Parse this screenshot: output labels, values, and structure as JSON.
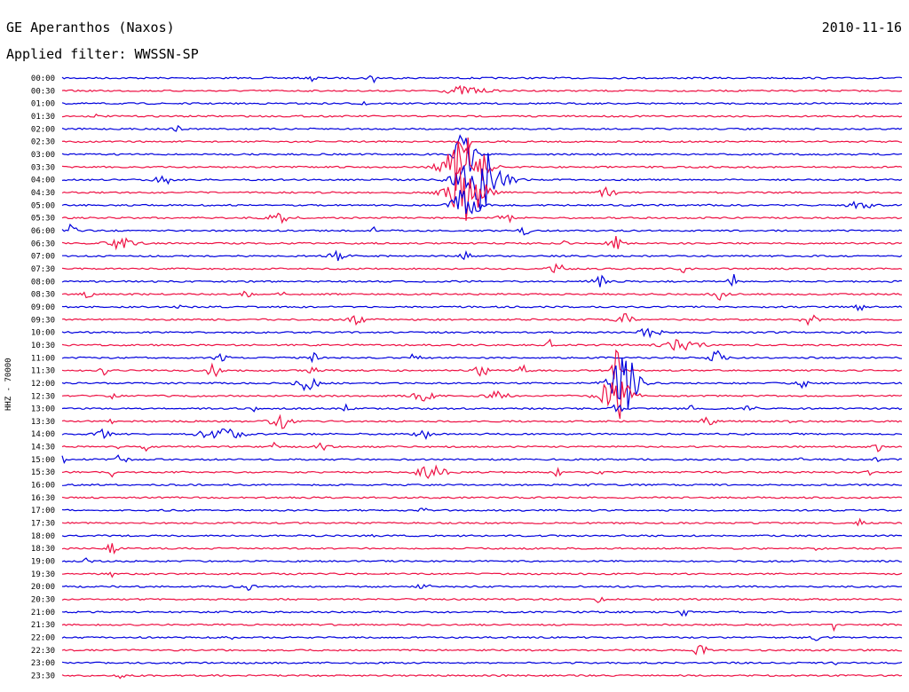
{
  "header": {
    "station": "GE Aperanthos (Naxos)",
    "date": "2010-11-16",
    "filter": "Applied filter: WWSSN-SP"
  },
  "channel_label": "HHZ - 70000",
  "colors": {
    "line_even": "#0000dd",
    "line_odd": "#ee1144"
  },
  "rows": [
    {
      "time": "00:00",
      "events": [
        [
          30,
          0.3,
          0.8
        ],
        [
          37,
          0.4,
          1.1
        ]
      ]
    },
    {
      "time": "00:30",
      "events": [
        [
          48,
          1.5,
          1.0
        ]
      ]
    },
    {
      "time": "01:00",
      "events": [
        [
          36,
          0.2,
          1.0
        ]
      ]
    },
    {
      "time": "01:30",
      "events": [
        [
          4,
          0.1,
          0.6
        ]
      ]
    },
    {
      "time": "02:00",
      "events": [
        [
          14,
          0.5,
          0.7
        ]
      ]
    },
    {
      "time": "02:30",
      "events": [
        [
          48,
          0.4,
          4.0
        ]
      ]
    },
    {
      "time": "03:00",
      "events": [
        [
          48,
          0.8,
          6.0
        ]
      ]
    },
    {
      "time": "03:30",
      "events": [
        [
          48,
          1.6,
          7.0
        ]
      ]
    },
    {
      "time": "04:00",
      "events": [
        [
          12,
          0.6,
          1.2
        ],
        [
          50,
          1.8,
          7.0
        ]
      ]
    },
    {
      "time": "04:30",
      "events": [
        [
          48,
          1.5,
          6.5
        ],
        [
          65,
          0.6,
          1.3
        ]
      ]
    },
    {
      "time": "05:00",
      "events": [
        [
          48,
          1.0,
          5.0
        ],
        [
          95,
          0.8,
          1.2
        ]
      ]
    },
    {
      "time": "05:30",
      "events": [
        [
          26,
          1.0,
          1.2
        ],
        [
          53,
          0.6,
          1.4
        ]
      ]
    },
    {
      "time": "06:00",
      "events": [
        [
          1,
          0.5,
          1.3
        ],
        [
          37,
          0.2,
          1.0
        ],
        [
          55,
          0.4,
          1.1
        ]
      ]
    },
    {
      "time": "06:30",
      "events": [
        [
          7,
          1.2,
          1.2
        ],
        [
          66,
          0.6,
          1.6
        ],
        [
          60,
          0.2,
          1.1
        ]
      ]
    },
    {
      "time": "07:00",
      "events": [
        [
          33,
          0.8,
          1.0
        ],
        [
          48,
          0.4,
          1.0
        ]
      ]
    },
    {
      "time": "07:30",
      "events": [
        [
          59,
          0.6,
          1.0
        ],
        [
          74,
          0.4,
          0.9
        ]
      ]
    },
    {
      "time": "08:00",
      "events": [
        [
          64,
          0.6,
          1.3
        ],
        [
          80,
          0.4,
          1.6
        ]
      ]
    },
    {
      "time": "08:30",
      "events": [
        [
          3,
          0.4,
          0.9
        ],
        [
          22,
          0.3,
          1.3
        ],
        [
          26,
          0.3,
          1.1
        ],
        [
          78,
          0.6,
          1.5
        ]
      ]
    },
    {
      "time": "09:00",
      "events": [
        [
          14,
          0.2,
          0.8
        ],
        [
          95,
          0.3,
          0.9
        ]
      ]
    },
    {
      "time": "09:30",
      "events": [
        [
          35,
          0.8,
          1.0
        ],
        [
          67,
          0.6,
          1.3
        ],
        [
          89,
          0.6,
          1.3
        ]
      ]
    },
    {
      "time": "10:00",
      "events": [
        [
          70,
          0.8,
          1.1
        ]
      ]
    },
    {
      "time": "10:30",
      "events": [
        [
          58,
          0.2,
          1.2
        ],
        [
          74,
          1.4,
          1.5
        ]
      ]
    },
    {
      "time": "11:00",
      "events": [
        [
          19,
          0.5,
          1.0
        ],
        [
          30,
          0.3,
          1.0
        ],
        [
          42,
          0.4,
          1.0
        ],
        [
          78,
          0.6,
          1.4
        ]
      ]
    },
    {
      "time": "11:30",
      "events": [
        [
          5,
          0.3,
          1.1
        ],
        [
          18,
          0.5,
          1.5
        ],
        [
          30,
          0.5,
          0.8
        ],
        [
          50,
          0.6,
          1.2
        ],
        [
          55,
          0.5,
          1.0
        ],
        [
          66,
          0.4,
          5.0
        ]
      ]
    },
    {
      "time": "12:00",
      "events": [
        [
          29,
          1.0,
          1.6
        ],
        [
          67,
          1.2,
          6.5
        ],
        [
          88,
          0.6,
          1.0
        ]
      ]
    },
    {
      "time": "12:30",
      "events": [
        [
          6,
          0.3,
          1.0
        ],
        [
          43,
          0.8,
          1.2
        ],
        [
          52,
          0.8,
          1.2
        ],
        [
          66,
          1.2,
          5.5
        ]
      ]
    },
    {
      "time": "13:00",
      "events": [
        [
          23,
          0.3,
          1.0
        ],
        [
          34,
          0.3,
          1.0
        ],
        [
          66,
          0.4,
          2.0
        ],
        [
          75,
          0.2,
          0.9
        ],
        [
          82,
          0.4,
          1.0
        ]
      ]
    },
    {
      "time": "13:30",
      "events": [
        [
          6,
          0.2,
          1.6
        ],
        [
          26,
          0.8,
          1.5
        ],
        [
          77,
          0.6,
          1.0
        ],
        [
          87,
          0.2,
          0.9
        ]
      ]
    },
    {
      "time": "14:00",
      "events": [
        [
          5,
          0.6,
          1.0
        ],
        [
          19,
          1.8,
          1.2
        ],
        [
          43,
          0.6,
          1.0
        ]
      ]
    },
    {
      "time": "14:30",
      "events": [
        [
          7,
          0.2,
          1.4
        ],
        [
          10,
          0.3,
          0.9
        ],
        [
          25,
          0.3,
          1.1
        ],
        [
          31,
          0.5,
          0.9
        ],
        [
          97,
          0.3,
          1.4
        ]
      ]
    },
    {
      "time": "15:00",
      "events": [
        [
          0,
          0.2,
          1.2
        ],
        [
          7,
          0.5,
          1.2
        ],
        [
          88,
          0.1,
          1.6
        ],
        [
          97,
          0.2,
          1.0
        ]
      ]
    },
    {
      "time": "15:30",
      "events": [
        [
          6,
          0.2,
          0.9
        ],
        [
          44,
          1.2,
          1.4
        ],
        [
          59,
          0.3,
          0.9
        ],
        [
          64,
          0.2,
          0.9
        ],
        [
          96,
          0.2,
          1.0
        ]
      ]
    },
    {
      "time": "16:00",
      "events": [
        [
          63,
          0.2,
          0.8
        ]
      ]
    },
    {
      "time": "16:30",
      "events": []
    },
    {
      "time": "17:00",
      "events": [
        [
          43,
          0.3,
          0.6
        ]
      ]
    },
    {
      "time": "17:30",
      "events": [
        [
          95,
          0.3,
          0.8
        ]
      ]
    },
    {
      "time": "18:00",
      "events": [
        [
          37,
          0.1,
          0.6
        ]
      ]
    },
    {
      "time": "18:30",
      "events": [
        [
          6,
          0.6,
          1.0
        ],
        [
          90,
          0.3,
          0.7
        ]
      ]
    },
    {
      "time": "19:00",
      "events": [
        [
          3,
          0.3,
          0.8
        ]
      ]
    },
    {
      "time": "19:30",
      "events": [
        [
          6,
          0.3,
          0.6
        ]
      ]
    },
    {
      "time": "20:00",
      "events": [
        [
          22,
          0.6,
          0.8
        ],
        [
          43,
          0.5,
          0.8
        ]
      ]
    },
    {
      "time": "20:30",
      "events": [
        [
          64,
          0.3,
          0.8
        ]
      ]
    },
    {
      "time": "21:00",
      "events": [
        [
          74,
          0.4,
          1.0
        ]
      ]
    },
    {
      "time": "21:30",
      "events": [
        [
          92,
          0.1,
          2.0
        ]
      ]
    },
    {
      "time": "22:00",
      "events": [
        [
          20,
          0.2,
          0.7
        ],
        [
          90,
          0.4,
          1.1
        ]
      ]
    },
    {
      "time": "22:30",
      "events": [
        [
          76,
          0.5,
          1.4
        ]
      ]
    },
    {
      "time": "23:00",
      "events": [
        [
          92,
          0.1,
          1.0
        ]
      ]
    },
    {
      "time": "23:30",
      "events": [
        [
          7,
          0.3,
          0.6
        ]
      ]
    }
  ]
}
